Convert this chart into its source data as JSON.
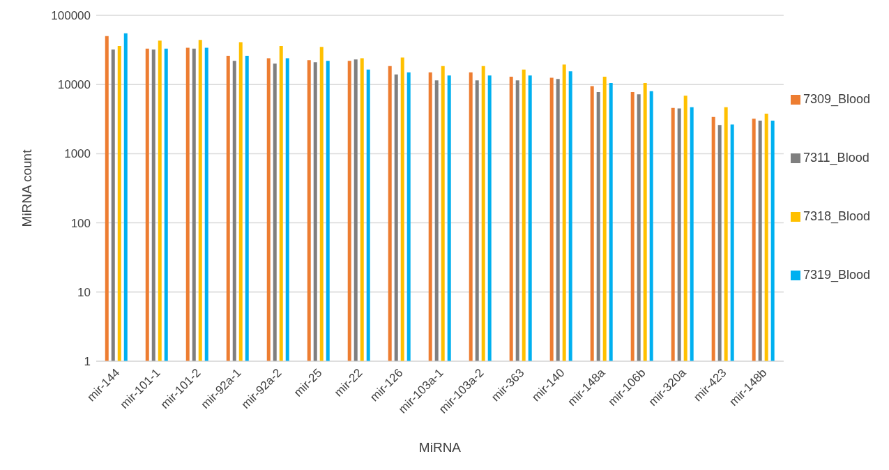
{
  "chart_data": {
    "type": "bar",
    "xlabel": "MiRNA",
    "ylabel": "MiRNA count",
    "log": "y",
    "grid": "y",
    "legend": "right",
    "categories": [
      "mir-144",
      "mir-101-1",
      "mir-101-2",
      "mir-92a-1",
      "mir-92a-2",
      "mir-25",
      "mir-22",
      "mir-126",
      "mir-103a-1",
      "mir-103a-2",
      "mir-363",
      "mir-140",
      "mir-148a",
      "mir-106b",
      "mir-320a",
      "mir-423",
      "mir-148b"
    ],
    "ylim": [
      1,
      100000
    ],
    "yticks": [
      1,
      10,
      100,
      1000,
      10000,
      100000
    ],
    "series": [
      {
        "name": "7309_Blood",
        "color": "#ed7d31",
        "values": [
          50000,
          33000,
          34000,
          26000,
          24000,
          22500,
          22000,
          18500,
          15000,
          15000,
          13000,
          12500,
          9500,
          7800,
          4600,
          3400,
          3200
        ]
      },
      {
        "name": "7311_Blood",
        "color": "#7f7f7f",
        "values": [
          32000,
          32000,
          33000,
          22000,
          20000,
          21000,
          23000,
          14000,
          11500,
          11500,
          11500,
          12000,
          7800,
          7200,
          4500,
          2600,
          3000
        ]
      },
      {
        "name": "7318_Blood",
        "color": "#ffc000",
        "values": [
          36000,
          43000,
          44000,
          41000,
          36000,
          35000,
          24000,
          24500,
          18500,
          18500,
          16500,
          19500,
          13000,
          10500,
          6900,
          4700,
          3800
        ]
      },
      {
        "name": "7319_Blood",
        "color": "#00b0f0",
        "values": [
          55000,
          33000,
          34000,
          26000,
          24000,
          22000,
          16500,
          15000,
          13500,
          13500,
          13500,
          15500,
          10500,
          8000,
          4700,
          2650,
          3000
        ]
      }
    ]
  }
}
